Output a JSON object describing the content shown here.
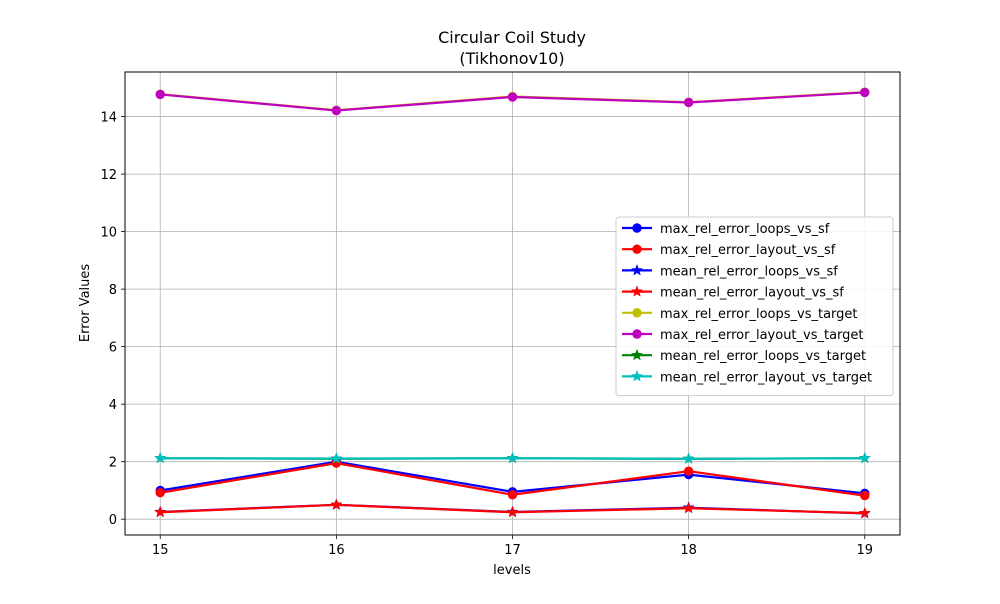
{
  "chart_data": {
    "type": "line",
    "title": "Circular Coil Study",
    "subtitle": "(Tikhonov10)",
    "xlabel": "levels",
    "ylabel": "Error Values",
    "x": [
      15,
      16,
      17,
      18,
      19
    ],
    "xlim": [
      14.8,
      19.2
    ],
    "ylim": [
      -0.55,
      15.55
    ],
    "xticks": [
      15,
      16,
      17,
      18,
      19
    ],
    "yticks": [
      0,
      2,
      4,
      6,
      8,
      10,
      12,
      14
    ],
    "grid": true,
    "legend_position": "center-right",
    "series": [
      {
        "name": "max_rel_error_loops_vs_sf",
        "color": "#0000ff",
        "marker": "circle",
        "values": [
          1.0,
          2.0,
          0.95,
          1.55,
          0.9
        ]
      },
      {
        "name": "max_rel_error_layout_vs_sf",
        "color": "#ff0000",
        "marker": "circle",
        "values": [
          0.92,
          1.95,
          0.85,
          1.67,
          0.82
        ]
      },
      {
        "name": "mean_rel_error_loops_vs_sf",
        "color": "#0000ff",
        "marker": "star",
        "values": [
          0.25,
          0.5,
          0.25,
          0.4,
          0.2
        ]
      },
      {
        "name": "mean_rel_error_layout_vs_sf",
        "color": "#ff0000",
        "marker": "star",
        "values": [
          0.24,
          0.5,
          0.24,
          0.38,
          0.21
        ]
      },
      {
        "name": "max_rel_error_loops_vs_target",
        "color": "#bfbf00",
        "marker": "circle",
        "values": [
          14.78,
          14.22,
          14.7,
          14.5,
          14.85
        ]
      },
      {
        "name": "max_rel_error_layout_vs_target",
        "color": "#bf00bf",
        "marker": "circle",
        "values": [
          14.77,
          14.21,
          14.68,
          14.49,
          14.84
        ]
      },
      {
        "name": "mean_rel_error_loops_vs_target",
        "color": "#008000",
        "marker": "star",
        "values": [
          2.12,
          2.1,
          2.12,
          2.1,
          2.12
        ]
      },
      {
        "name": "mean_rel_error_layout_vs_target",
        "color": "#00bfbf",
        "marker": "star",
        "values": [
          2.12,
          2.11,
          2.12,
          2.1,
          2.12
        ]
      }
    ]
  }
}
